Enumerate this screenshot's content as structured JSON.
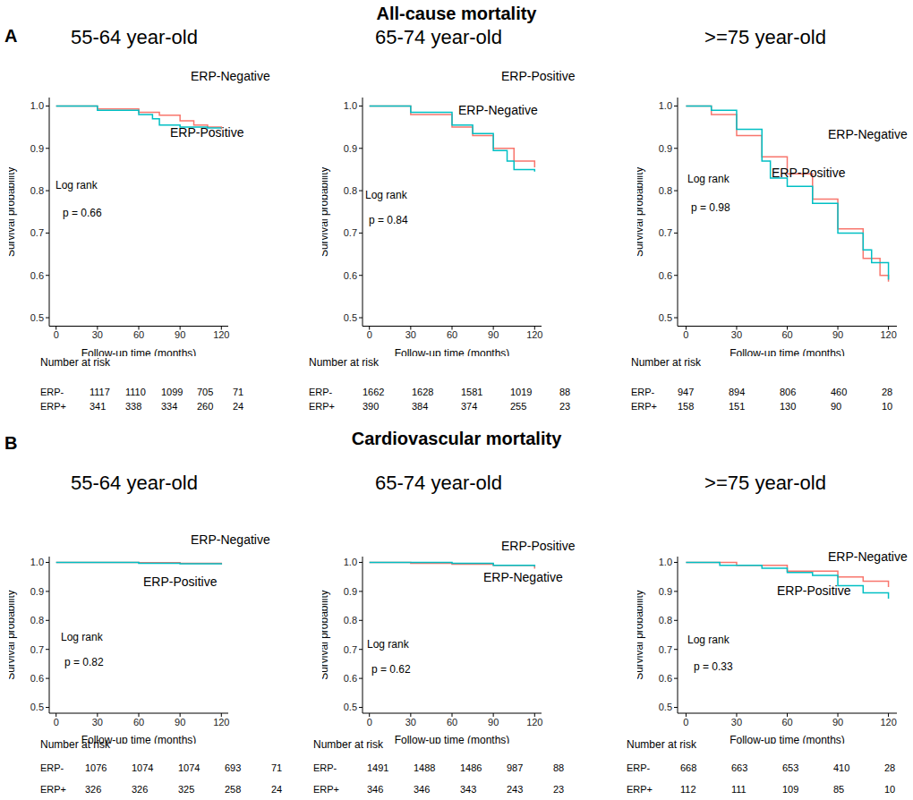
{
  "headings": [
    {
      "label": "A",
      "title": "All-cause mortality"
    },
    {
      "label": "B",
      "title": "Cardiovascular mortality"
    }
  ],
  "chart_data": [
    {
      "type": "line",
      "line_style": "step",
      "grid": false,
      "title": "55-64 year-old",
      "x_label": "Follow-up time (months)",
      "y_label": "Survival probability",
      "xlim": [
        -5,
        125
      ],
      "xticks": [
        0,
        30,
        60,
        90,
        120
      ],
      "ylim": [
        0.48,
        1.02
      ],
      "yticks": [
        0.5,
        0.6,
        0.7,
        0.8,
        0.9,
        {
          "value": 1,
          "label": "1.0"
        }
      ],
      "annotations": [
        "Log rank",
        "p = 0.66"
      ],
      "series": [
        {
          "name": "ERP-Negative",
          "color": "#F8766D",
          "x": [
            0,
            30,
            60,
            75,
            90,
            100,
            110,
            120
          ],
          "values": [
            1,
            0.993,
            0.985,
            0.978,
            0.965,
            0.955,
            0.95,
            0.945
          ]
        },
        {
          "name": "ERP-Positive",
          "color": "#00BFC4",
          "x": [
            0,
            30,
            60,
            70,
            75,
            90,
            110,
            120
          ],
          "values": [
            1,
            0.99,
            0.98,
            0.97,
            0.955,
            0.95,
            0.948,
            0.948
          ]
        }
      ],
      "risk_table": {
        "title": "Number at risk",
        "rows": [
          {
            "name": "ERP-",
            "values": [
              1117,
              1110,
              1099,
              705,
              71
            ]
          },
          {
            "name": "ERP+",
            "values": [
              341,
              338,
              334,
              260,
              24
            ]
          }
        ]
      }
    },
    {
      "type": "line",
      "line_style": "step",
      "grid": false,
      "title": "65-74 year-old",
      "x_label": "Follow-up time (months)",
      "y_label": "Survival probability",
      "xlim": [
        -5,
        125
      ],
      "xticks": [
        0,
        30,
        60,
        90,
        120
      ],
      "ylim": [
        0.48,
        1.02
      ],
      "yticks": [
        0.5,
        0.6,
        0.7,
        0.8,
        0.9,
        {
          "value": 1,
          "label": "1.0"
        }
      ],
      "annotations": [
        "Log rank",
        "p = 0.84"
      ],
      "series": [
        {
          "name": "ERP-Negative",
          "color": "#F8766D",
          "x": [
            0,
            30,
            60,
            75,
            90,
            105,
            120
          ],
          "values": [
            1,
            0.98,
            0.95,
            0.93,
            0.9,
            0.87,
            0.855
          ]
        },
        {
          "name": "ERP-Positive",
          "color": "#00BFC4",
          "x": [
            0,
            30,
            60,
            75,
            90,
            100,
            105,
            120
          ],
          "values": [
            1,
            0.985,
            0.955,
            0.935,
            0.895,
            0.87,
            0.85,
            0.845
          ]
        }
      ],
      "risk_table": {
        "title": "Number at risk",
        "rows": [
          {
            "name": "ERP-",
            "values": [
              1662,
              1628,
              1581,
              1019,
              88
            ]
          },
          {
            "name": "ERP+",
            "values": [
              390,
              384,
              374,
              255,
              23
            ]
          }
        ]
      }
    },
    {
      "type": "line",
      "line_style": "step",
      "grid": false,
      "title": ">=75 year-old",
      "x_label": "Follow-up time (months)",
      "y_label": "Survival probability",
      "xlim": [
        -5,
        125
      ],
      "xticks": [
        0,
        30,
        60,
        90,
        120
      ],
      "ylim": [
        0.48,
        1.02
      ],
      "yticks": [
        0.5,
        0.6,
        0.7,
        0.8,
        0.9,
        {
          "value": 1,
          "label": "1.0"
        }
      ],
      "annotations": [
        "Log rank",
        "p = 0.98"
      ],
      "series": [
        {
          "name": "ERP-Negative",
          "color": "#F8766D",
          "x": [
            0,
            15,
            30,
            45,
            60,
            75,
            90,
            105,
            115,
            120
          ],
          "values": [
            1,
            0.98,
            0.93,
            0.88,
            0.84,
            0.78,
            0.71,
            0.64,
            0.6,
            0.585
          ]
        },
        {
          "name": "ERP-Positive",
          "color": "#00BFC4",
          "x": [
            0,
            15,
            30,
            45,
            50,
            60,
            75,
            90,
            105,
            110,
            120
          ],
          "values": [
            1,
            0.99,
            0.945,
            0.87,
            0.83,
            0.81,
            0.77,
            0.7,
            0.66,
            0.63,
            0.59
          ]
        }
      ],
      "risk_table": {
        "title": "Number at risk",
        "rows": [
          {
            "name": "ERP-",
            "values": [
              947,
              894,
              806,
              460,
              28
            ]
          },
          {
            "name": "ERP+",
            "values": [
              158,
              151,
              130,
              90,
              10
            ]
          }
        ]
      }
    },
    {
      "type": "line",
      "line_style": "step",
      "grid": false,
      "title": "55-64 year-old",
      "x_label": "Follow-up time (months)",
      "y_label": "Survival probability",
      "xlim": [
        -5,
        125
      ],
      "xticks": [
        0,
        30,
        60,
        90,
        120
      ],
      "ylim": [
        0.48,
        1.02
      ],
      "yticks": [
        0.5,
        0.6,
        0.7,
        0.8,
        0.9,
        {
          "value": 1,
          "label": "1.0"
        }
      ],
      "annotations": [
        "Log rank",
        "p = 0.82"
      ],
      "series": [
        {
          "name": "ERP-Negative",
          "color": "#F8766D",
          "x": [
            0,
            60,
            90,
            120
          ],
          "values": [
            1,
            0.999,
            0.997,
            0.993
          ]
        },
        {
          "name": "ERP-Positive",
          "color": "#00BFC4",
          "x": [
            0,
            60,
            90,
            120
          ],
          "values": [
            1,
            0.997,
            0.995,
            0.993
          ]
        }
      ],
      "risk_table": {
        "title": "Number at risk",
        "rows": [
          {
            "name": "ERP-",
            "values": [
              1076,
              1074,
              1074,
              693,
              71
            ]
          },
          {
            "name": "ERP+",
            "values": [
              326,
              326,
              325,
              258,
              24
            ]
          }
        ]
      }
    },
    {
      "type": "line",
      "line_style": "step",
      "grid": false,
      "title": "65-74 year-old",
      "x_label": "Follow-up time (months)",
      "y_label": "Survival probability",
      "xlim": [
        -5,
        125
      ],
      "xticks": [
        0,
        30,
        60,
        90,
        120
      ],
      "ylim": [
        0.48,
        1.02
      ],
      "yticks": [
        0.5,
        0.6,
        0.7,
        0.8,
        0.9,
        {
          "value": 1,
          "label": "1.0"
        }
      ],
      "annotations": [
        "Log rank",
        "p = 0.62"
      ],
      "series": [
        {
          "name": "ERP-Negative",
          "color": "#F8766D",
          "x": [
            0,
            30,
            60,
            90,
            120
          ],
          "values": [
            1,
            0.997,
            0.994,
            0.99,
            0.978
          ]
        },
        {
          "name": "ERP-Positive",
          "color": "#00BFC4",
          "x": [
            0,
            60,
            90,
            120
          ],
          "values": [
            1,
            0.997,
            0.99,
            0.985
          ]
        }
      ],
      "risk_table": {
        "title": "Number at risk",
        "rows": [
          {
            "name": "ERP-",
            "values": [
              1491,
              1488,
              1486,
              987,
              88
            ]
          },
          {
            "name": "ERP+",
            "values": [
              346,
              346,
              343,
              243,
              23
            ]
          }
        ]
      }
    },
    {
      "type": "line",
      "line_style": "step",
      "grid": false,
      "title": ">=75 year-old",
      "x_label": "Follow-up time (months)",
      "y_label": "Survival probability",
      "xlim": [
        -5,
        125
      ],
      "xticks": [
        0,
        30,
        60,
        90,
        120
      ],
      "ylim": [
        0.48,
        1.02
      ],
      "yticks": [
        0.5,
        0.6,
        0.7,
        0.8,
        0.9,
        {
          "value": 1,
          "label": "1.0"
        }
      ],
      "annotations": [
        "Log rank",
        "p = 0.33"
      ],
      "series": [
        {
          "name": "ERP-Negative",
          "color": "#F8766D",
          "x": [
            0,
            30,
            60,
            90,
            105,
            120
          ],
          "values": [
            1,
            0.99,
            0.97,
            0.95,
            0.935,
            0.915
          ]
        },
        {
          "name": "ERP-Positive",
          "color": "#00BFC4",
          "x": [
            0,
            20,
            45,
            60,
            75,
            90,
            105,
            120
          ],
          "values": [
            1,
            0.99,
            0.98,
            0.965,
            0.955,
            0.92,
            0.895,
            0.875
          ]
        }
      ],
      "risk_table": {
        "title": "Number at risk",
        "rows": [
          {
            "name": "ERP-",
            "values": [
              668,
              663,
              653,
              410,
              28
            ]
          },
          {
            "name": "ERP+",
            "values": [
              112,
              111,
              109,
              85,
              10
            ]
          }
        ]
      }
    }
  ]
}
